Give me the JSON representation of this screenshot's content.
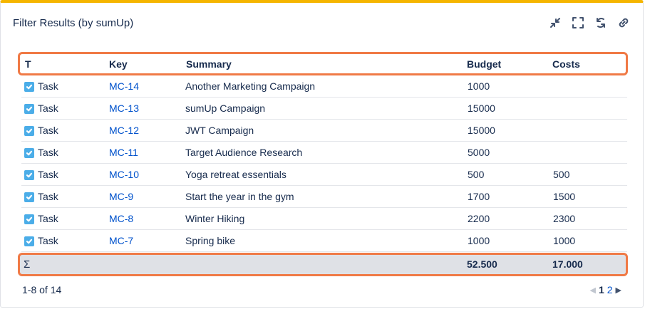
{
  "gadget": {
    "title": "Filter Results (by sumUp)",
    "actions": [
      "minimize-icon",
      "fullscreen-icon",
      "refresh-icon",
      "link-icon"
    ]
  },
  "table": {
    "headers": {
      "t": "T",
      "key": "Key",
      "summary": "Summary",
      "budget": "Budget",
      "costs": "Costs"
    },
    "rows": [
      {
        "type": "Task",
        "key": "MC-14",
        "summary": "Another Marketing Campaign",
        "budget": "1000",
        "costs": ""
      },
      {
        "type": "Task",
        "key": "MC-13",
        "summary": "sumUp Campaign",
        "budget": "15000",
        "costs": ""
      },
      {
        "type": "Task",
        "key": "MC-12",
        "summary": "JWT Campaign",
        "budget": "15000",
        "costs": ""
      },
      {
        "type": "Task",
        "key": "MC-11",
        "summary": "Target Audience Research",
        "budget": "5000",
        "costs": ""
      },
      {
        "type": "Task",
        "key": "MC-10",
        "summary": "Yoga retreat essentials",
        "budget": "500",
        "costs": "500"
      },
      {
        "type": "Task",
        "key": "MC-9",
        "summary": "Start the year in the gym",
        "budget": "1700",
        "costs": "1500"
      },
      {
        "type": "Task",
        "key": "MC-8",
        "summary": "Winter Hiking",
        "budget": "2200",
        "costs": "2300"
      },
      {
        "type": "Task",
        "key": "MC-7",
        "summary": "Spring bike",
        "budget": "1000",
        "costs": "1000"
      }
    ],
    "totals": {
      "symbol": "Σ",
      "budget": "52.500",
      "costs": "17.000"
    }
  },
  "footer": {
    "count": "1-8 of 14",
    "pages": [
      "1",
      "2"
    ]
  },
  "colors": {
    "accent_top": "#f5b500",
    "highlight": "#f07a46",
    "link": "#0052cc",
    "checkbox": "#4bade8"
  }
}
